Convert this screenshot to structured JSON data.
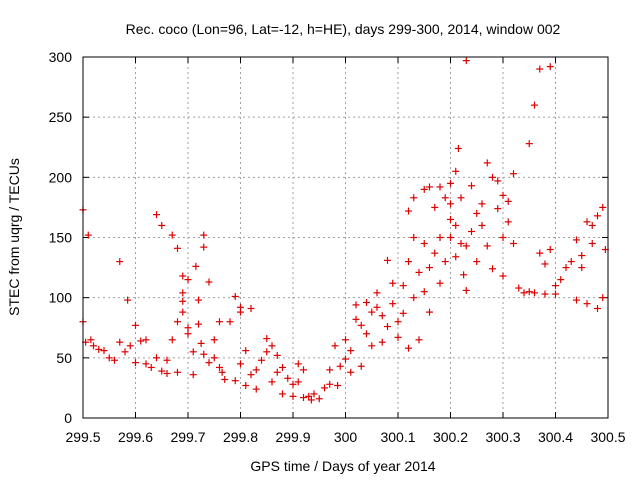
{
  "chart_data": {
    "type": "scatter",
    "title": "Rec. coco (Lon=96, Lat=-12, h=HE), days 299-300, 2014, window 002",
    "xlabel": "GPS time / Days of year 2014",
    "ylabel": "STEC from uqrg / TECUs",
    "xlim": [
      299.5,
      300.5
    ],
    "ylim": [
      0,
      300
    ],
    "xticks": [
      299.5,
      299.6,
      299.7,
      299.8,
      299.9,
      300,
      300.1,
      300.2,
      300.3,
      300.4,
      300.5
    ],
    "xtick_labels": [
      "299.5",
      "299.6",
      "299.7",
      "299.8",
      "299.9",
      "300",
      "300.1",
      "300.2",
      "300.3",
      "300.4",
      "300.5"
    ],
    "yticks": [
      0,
      50,
      100,
      150,
      200,
      250,
      300
    ],
    "ytick_labels": [
      "0",
      "50",
      "100",
      "150",
      "200",
      "250",
      "300"
    ],
    "grid": true,
    "marker": "+",
    "color": "#dd0000",
    "series": [
      {
        "name": "STEC",
        "points": [
          [
            299.5,
            173
          ],
          [
            299.5,
            80
          ],
          [
            299.505,
            63
          ],
          [
            299.51,
            152
          ],
          [
            299.515,
            65
          ],
          [
            299.52,
            60
          ],
          [
            299.53,
            57
          ],
          [
            299.54,
            56
          ],
          [
            299.55,
            50
          ],
          [
            299.56,
            48
          ],
          [
            299.57,
            130
          ],
          [
            299.57,
            63
          ],
          [
            299.58,
            55
          ],
          [
            299.585,
            98
          ],
          [
            299.59,
            60
          ],
          [
            299.6,
            77
          ],
          [
            299.6,
            46
          ],
          [
            299.61,
            64
          ],
          [
            299.62,
            65
          ],
          [
            299.62,
            45
          ],
          [
            299.63,
            42
          ],
          [
            299.64,
            169
          ],
          [
            299.64,
            50
          ],
          [
            299.65,
            39
          ],
          [
            299.65,
            160
          ],
          [
            299.66,
            48
          ],
          [
            299.66,
            37
          ],
          [
            299.67,
            152
          ],
          [
            299.67,
            65
          ],
          [
            299.68,
            141
          ],
          [
            299.68,
            38
          ],
          [
            299.68,
            80
          ],
          [
            299.69,
            118
          ],
          [
            299.69,
            104
          ],
          [
            299.69,
            88
          ],
          [
            299.69,
            97
          ],
          [
            299.7,
            115
          ],
          [
            299.7,
            70
          ],
          [
            299.7,
            75
          ],
          [
            299.71,
            36
          ],
          [
            299.71,
            55
          ],
          [
            299.715,
            126
          ],
          [
            299.72,
            98
          ],
          [
            299.72,
            78
          ],
          [
            299.725,
            62
          ],
          [
            299.73,
            152
          ],
          [
            299.73,
            142
          ],
          [
            299.73,
            53
          ],
          [
            299.74,
            46
          ],
          [
            299.74,
            113
          ],
          [
            299.75,
            65
          ],
          [
            299.75,
            50
          ],
          [
            299.76,
            42
          ],
          [
            299.76,
            80
          ],
          [
            299.765,
            38
          ],
          [
            299.77,
            32
          ],
          [
            299.78,
            80
          ],
          [
            299.79,
            101
          ],
          [
            299.79,
            31
          ],
          [
            299.8,
            92
          ],
          [
            299.8,
            88
          ],
          [
            299.8,
            45
          ],
          [
            299.81,
            56
          ],
          [
            299.81,
            27
          ],
          [
            299.82,
            91
          ],
          [
            299.82,
            36
          ],
          [
            299.83,
            40
          ],
          [
            299.83,
            24
          ],
          [
            299.84,
            48
          ],
          [
            299.85,
            66
          ],
          [
            299.85,
            55
          ],
          [
            299.86,
            60
          ],
          [
            299.86,
            30
          ],
          [
            299.87,
            52
          ],
          [
            299.87,
            38
          ],
          [
            299.88,
            42
          ],
          [
            299.88,
            20
          ],
          [
            299.89,
            33
          ],
          [
            299.9,
            28
          ],
          [
            299.9,
            18
          ],
          [
            299.91,
            45
          ],
          [
            299.91,
            30
          ],
          [
            299.92,
            40
          ],
          [
            299.92,
            17
          ],
          [
            299.93,
            18
          ],
          [
            299.935,
            15
          ],
          [
            299.94,
            20
          ],
          [
            299.95,
            16
          ],
          [
            299.96,
            25
          ],
          [
            299.97,
            28
          ],
          [
            299.97,
            40
          ],
          [
            299.98,
            60
          ],
          [
            299.985,
            27
          ],
          [
            299.99,
            43
          ],
          [
            300.0,
            65
          ],
          [
            300.0,
            49
          ],
          [
            300.01,
            56
          ],
          [
            300.01,
            38
          ],
          [
            300.02,
            94
          ],
          [
            300.02,
            82
          ],
          [
            300.03,
            77
          ],
          [
            300.03,
            43
          ],
          [
            300.04,
            70
          ],
          [
            300.04,
            96
          ],
          [
            300.05,
            60
          ],
          [
            300.05,
            88
          ],
          [
            300.06,
            92
          ],
          [
            300.06,
            104
          ],
          [
            300.07,
            85
          ],
          [
            300.07,
            63
          ],
          [
            300.08,
            131
          ],
          [
            300.08,
            76
          ],
          [
            300.09,
            95
          ],
          [
            300.09,
            112
          ],
          [
            300.1,
            67
          ],
          [
            300.1,
            80
          ],
          [
            300.11,
            110
          ],
          [
            300.11,
            87
          ],
          [
            300.12,
            172
          ],
          [
            300.12,
            130
          ],
          [
            300.12,
            58
          ],
          [
            300.13,
            183
          ],
          [
            300.13,
            150
          ],
          [
            300.13,
            100
          ],
          [
            300.14,
            121
          ],
          [
            300.14,
            65
          ],
          [
            300.15,
            190
          ],
          [
            300.15,
            145
          ],
          [
            300.15,
            105
          ],
          [
            300.16,
            192
          ],
          [
            300.16,
            125
          ],
          [
            300.16,
            88
          ],
          [
            300.17,
            175
          ],
          [
            300.17,
            137
          ],
          [
            300.18,
            192
          ],
          [
            300.18,
            150
          ],
          [
            300.18,
            112
          ],
          [
            300.19,
            183
          ],
          [
            300.19,
            130
          ],
          [
            300.2,
            195
          ],
          [
            300.2,
            178
          ],
          [
            300.2,
            165
          ],
          [
            300.2,
            150
          ],
          [
            300.21,
            205
          ],
          [
            300.21,
            160
          ],
          [
            300.21,
            134
          ],
          [
            300.215,
            224
          ],
          [
            300.22,
            183
          ],
          [
            300.22,
            145
          ],
          [
            300.225,
            119
          ],
          [
            300.23,
            297
          ],
          [
            300.23,
            143
          ],
          [
            300.23,
            106
          ],
          [
            300.24,
            193
          ],
          [
            300.24,
            155
          ],
          [
            300.25,
            170
          ],
          [
            300.25,
            130
          ],
          [
            300.26,
            178
          ],
          [
            300.26,
            160
          ],
          [
            300.27,
            212
          ],
          [
            300.27,
            143
          ],
          [
            300.28,
            200
          ],
          [
            300.28,
            124
          ],
          [
            300.29,
            197
          ],
          [
            300.29,
            174
          ],
          [
            300.3,
            185
          ],
          [
            300.3,
            150
          ],
          [
            300.3,
            118
          ],
          [
            300.31,
            180
          ],
          [
            300.31,
            163
          ],
          [
            300.32,
            203
          ],
          [
            300.32,
            145
          ],
          [
            300.33,
            108
          ],
          [
            300.34,
            104
          ],
          [
            300.35,
            228
          ],
          [
            300.35,
            105
          ],
          [
            300.36,
            260
          ],
          [
            300.36,
            104
          ],
          [
            300.37,
            290
          ],
          [
            300.37,
            137
          ],
          [
            300.38,
            128
          ],
          [
            300.38,
            103
          ],
          [
            300.39,
            292
          ],
          [
            300.39,
            140
          ],
          [
            300.4,
            110
          ],
          [
            300.4,
            103
          ],
          [
            300.41,
            115
          ],
          [
            300.42,
            125
          ],
          [
            300.43,
            130
          ],
          [
            300.44,
            148
          ],
          [
            300.44,
            98
          ],
          [
            300.45,
            135
          ],
          [
            300.45,
            125
          ],
          [
            300.46,
            163
          ],
          [
            300.46,
            95
          ],
          [
            300.47,
            160
          ],
          [
            300.47,
            145
          ],
          [
            300.48,
            168
          ],
          [
            300.48,
            91
          ],
          [
            300.49,
            175
          ],
          [
            300.49,
            100
          ],
          [
            300.495,
            140
          ]
        ]
      }
    ]
  }
}
